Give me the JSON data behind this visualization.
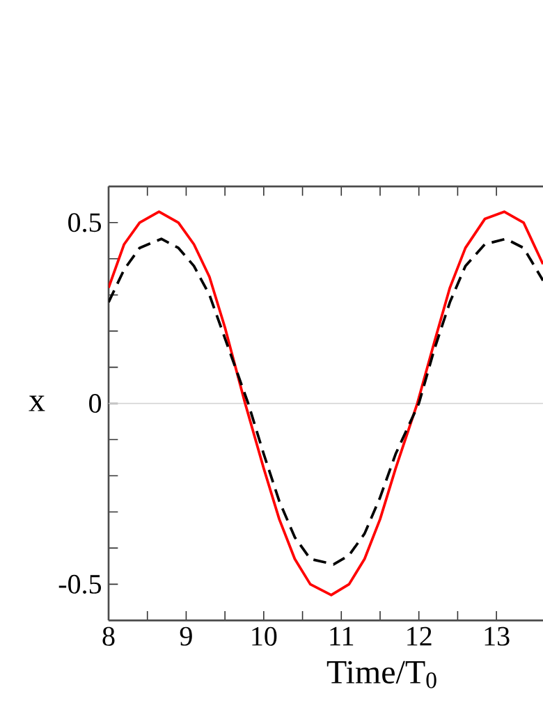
{
  "chart_data": {
    "type": "line",
    "xlabel": "Time/T$_{0}$",
    "ylabel": "x",
    "xlim": [
      8,
      13.6
    ],
    "ylim": [
      -0.6,
      0.6
    ],
    "xticks": [
      8,
      {
        "value": 8.5,
        "label": null
      },
      9,
      {
        "value": 9.5,
        "label": null
      },
      10,
      {
        "value": 10.5,
        "label": null
      },
      11,
      {
        "value": 11.5,
        "label": null
      },
      12,
      {
        "value": 12.5,
        "label": null
      },
      13
    ],
    "yticks": [
      {
        "value": -0.6,
        "label": null
      },
      -0.5,
      {
        "value": -0.4,
        "label": null
      },
      {
        "value": -0.3,
        "label": null
      },
      {
        "value": -0.2,
        "label": null
      },
      {
        "value": -0.1,
        "label": null
      },
      0,
      {
        "value": 0.1,
        "label": null
      },
      {
        "value": 0.2,
        "label": null
      },
      {
        "value": 0.3,
        "label": null
      },
      {
        "value": 0.4,
        "label": null
      },
      0.5
    ],
    "ref_lines": [
      {
        "axis": "y",
        "value": 0,
        "color": "#d3d3d3"
      }
    ],
    "series": [
      {
        "color": "#ff0000",
        "line_style": "solid",
        "x": [
          8.0,
          8.2,
          8.4,
          8.65,
          8.9,
          9.1,
          9.3,
          9.5,
          9.76,
          10.0,
          10.2,
          10.4,
          10.6,
          10.87,
          11.1,
          11.3,
          11.5,
          11.7,
          11.98,
          12.2,
          12.4,
          12.6,
          12.85,
          13.1,
          13.35,
          13.6
        ],
        "values": [
          0.32,
          0.44,
          0.5,
          0.53,
          0.5,
          0.44,
          0.35,
          0.21,
          0,
          -0.18,
          -0.32,
          -0.43,
          -0.5,
          -0.53,
          -0.5,
          -0.43,
          -0.32,
          -0.18,
          0,
          0.17,
          0.32,
          0.43,
          0.51,
          0.53,
          0.5,
          0.385
        ]
      },
      {
        "color": "#000000",
        "line_style": "dashed",
        "x": [
          8.0,
          8.2,
          8.4,
          8.68,
          8.9,
          9.1,
          9.3,
          9.5,
          9.8,
          10.0,
          10.2,
          10.4,
          10.6,
          10.9,
          11.1,
          11.3,
          11.5,
          11.7,
          12.0,
          12.2,
          12.4,
          12.6,
          12.85,
          13.12,
          13.35,
          13.6
        ],
        "values": [
          0.28,
          0.37,
          0.43,
          0.455,
          0.43,
          0.38,
          0.3,
          0.18,
          0,
          -0.14,
          -0.27,
          -0.37,
          -0.43,
          -0.445,
          -0.42,
          -0.36,
          -0.26,
          -0.14,
          0,
          0.15,
          0.28,
          0.38,
          0.44,
          0.455,
          0.43,
          0.34
        ]
      }
    ]
  }
}
